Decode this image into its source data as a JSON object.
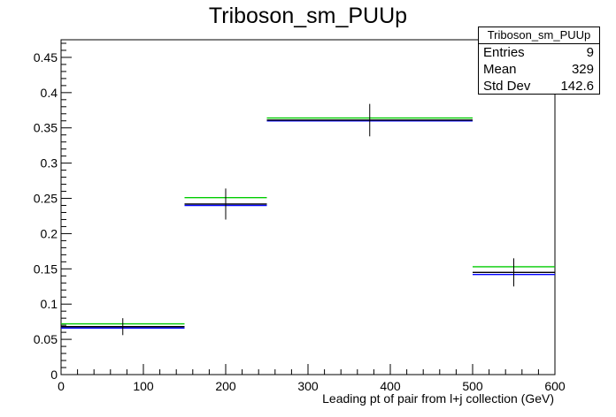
{
  "chart_data": {
    "type": "histogram",
    "title": "Triboson_sm_PUUp",
    "xlabel": "Leading pt of pair from l+j collection (GeV)",
    "ylabel": "",
    "xlim": [
      0,
      600
    ],
    "ylim": [
      0,
      0.475
    ],
    "x_ticks": [
      0,
      100,
      200,
      300,
      400,
      500,
      600
    ],
    "y_ticks": [
      0,
      0.05,
      0.1,
      0.15,
      0.2,
      0.25,
      0.3,
      0.35,
      0.4,
      0.45
    ],
    "y_tick_labels": [
      "0",
      "0.05",
      "0.1",
      "0.15",
      "0.2",
      "0.25",
      "0.3",
      "0.35",
      "0.4",
      "0.45"
    ],
    "bin_edges": [
      0,
      150,
      250,
      500,
      600
    ],
    "series": [
      {
        "color": "#000000",
        "values": [
          0.068,
          0.242,
          0.361,
          0.145
        ],
        "errors": [
          0.012,
          0.022,
          0.023,
          0.02
        ]
      },
      {
        "color": "#0000ff",
        "values": [
          0.066,
          0.24,
          0.36,
          0.142
        ]
      },
      {
        "color": "#00cc00",
        "values": [
          0.072,
          0.251,
          0.364,
          0.153
        ]
      }
    ],
    "grid": false,
    "legend": "none"
  },
  "stats": {
    "name": "Triboson_sm_PUUp",
    "entries_label": "Entries",
    "entries": "9",
    "mean_label": "Mean",
    "mean": "329",
    "stddev_label": "Std Dev",
    "stddev": "142.6"
  }
}
